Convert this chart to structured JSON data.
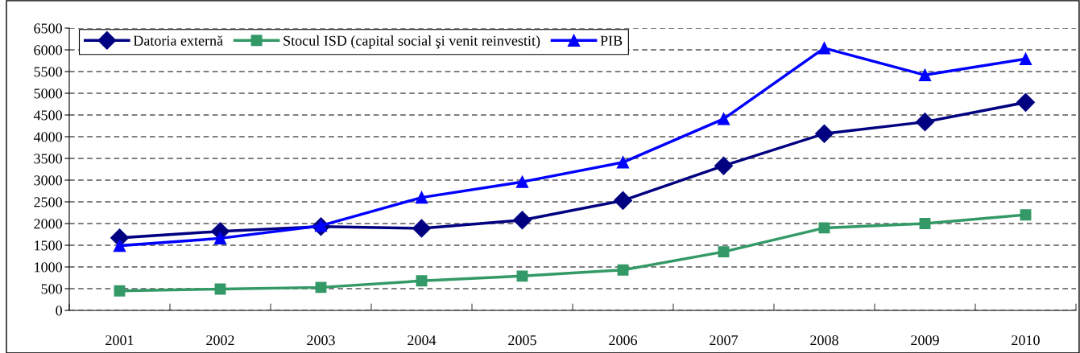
{
  "chart_data": {
    "type": "line",
    "categories": [
      "2001",
      "2002",
      "2003",
      "2004",
      "2005",
      "2006",
      "2007",
      "2008",
      "2009",
      "2010"
    ],
    "series": [
      {
        "name": "Datoria externă",
        "color": "#000080",
        "marker": "diamond",
        "values": [
          1670,
          1820,
          1930,
          1890,
          2080,
          2530,
          3330,
          4070,
          4340,
          4790
        ]
      },
      {
        "name": "Stocul ISD (capital social şi venit reinvestit)",
        "color": "#339966",
        "marker": "square",
        "values": [
          450,
          490,
          530,
          680,
          790,
          930,
          1350,
          1900,
          2000,
          2200
        ]
      },
      {
        "name": "PIB",
        "color": "#0000ff",
        "marker": "triangle",
        "values": [
          1490,
          1660,
          1950,
          2600,
          2960,
          3410,
          4410,
          6040,
          5420,
          5790
        ]
      }
    ],
    "ylim": [
      0,
      6500
    ],
    "yticks": [
      0,
      500,
      1000,
      1500,
      2000,
      2500,
      3000,
      3500,
      4000,
      4500,
      5000,
      5500,
      6000,
      6500
    ],
    "grid": "y",
    "legend": "top left",
    "line_style": "solid"
  }
}
